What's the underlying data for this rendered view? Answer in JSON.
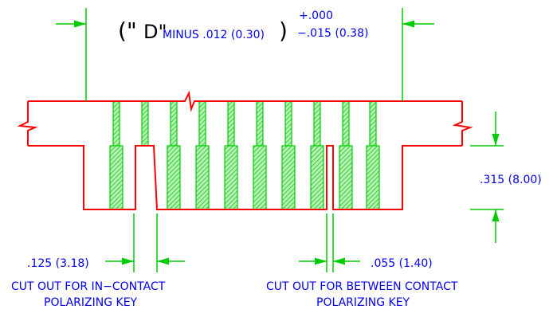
{
  "dimension": {
    "open": "(\"",
    "letter": "D\"",
    "minus": "MINUS .012 (0.30)",
    "close": ")"
  },
  "tolerance": {
    "plus": "+.000",
    "minus": "−.015 (0.38)"
  },
  "height": ".315 (8.00)",
  "in_contact": {
    "width": ".125 (3.18)",
    "caption": [
      "CUT OUT FOR IN−CONTACT",
      "POLARIZING KEY"
    ]
  },
  "between_contact": {
    "width": ".055 (1.40)",
    "caption": [
      "CUT OUT FOR BETWEEN CONTACT",
      "POLARIZING KEY"
    ]
  }
}
